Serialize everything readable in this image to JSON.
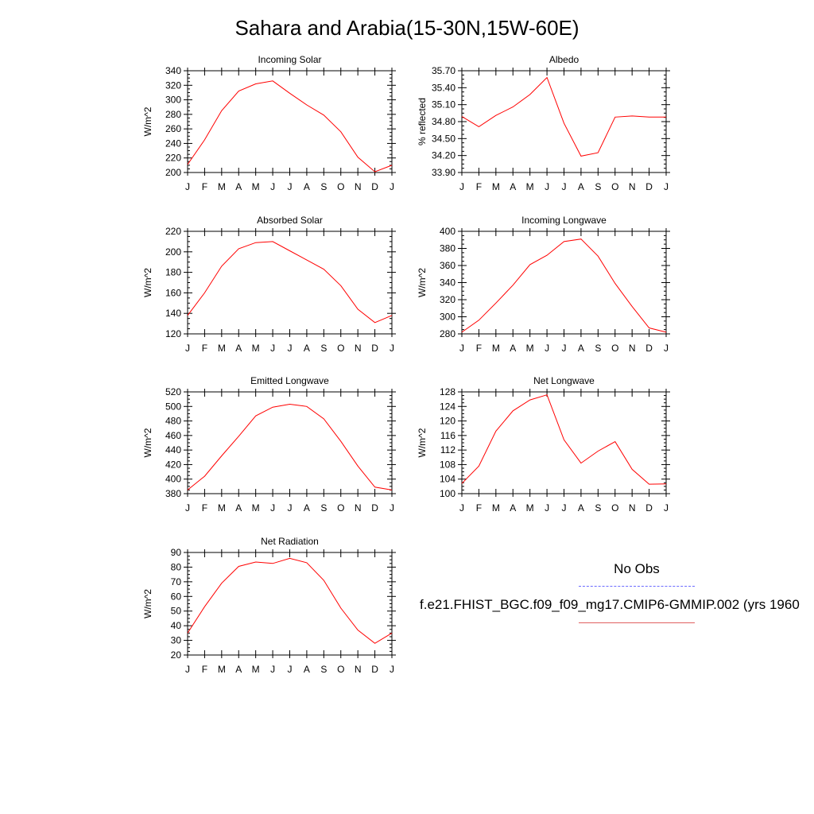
{
  "title": "Sahara and Arabia(15-30N,15W-60E)",
  "colors": {
    "model": "#ff0000",
    "obs": "#6a6aff",
    "axis": "#000000"
  },
  "legend": {
    "obs_label": "No Obs",
    "model_label": "f.e21.FHIST_BGC.f09_f09_mg17.CMIP6-GMMIP.002 (yrs 1960"
  },
  "chart_data": [
    {
      "type": "line",
      "title": "Incoming Solar",
      "ylabel": "W/m^2",
      "categories": [
        "J",
        "F",
        "M",
        "A",
        "M",
        "J",
        "J",
        "A",
        "S",
        "O",
        "N",
        "D",
        "J"
      ],
      "ylim": [
        200,
        340
      ],
      "yticks": [
        "200",
        "220",
        "240",
        "260",
        "280",
        "300",
        "320",
        "340"
      ],
      "values": [
        211,
        245,
        285,
        312,
        322,
        326,
        309,
        293,
        279,
        256,
        221,
        201,
        210
      ]
    },
    {
      "type": "line",
      "title": "Albedo",
      "ylabel": "% reflected",
      "categories": [
        "J",
        "F",
        "M",
        "A",
        "M",
        "J",
        "J",
        "A",
        "S",
        "O",
        "N",
        "D",
        "J"
      ],
      "ylim": [
        33.9,
        35.7
      ],
      "yticks": [
        "33.90",
        "34.20",
        "34.50",
        "34.80",
        "35.10",
        "35.40",
        "35.70"
      ],
      "values": [
        34.89,
        34.71,
        34.91,
        35.06,
        35.28,
        35.58,
        34.77,
        34.19,
        34.25,
        34.88,
        34.9,
        34.88,
        34.88
      ]
    },
    {
      "type": "line",
      "title": "Absorbed Solar",
      "ylabel": "W/m^2",
      "categories": [
        "J",
        "F",
        "M",
        "A",
        "M",
        "J",
        "J",
        "A",
        "S",
        "O",
        "N",
        "D",
        "J"
      ],
      "ylim": [
        120,
        220
      ],
      "yticks": [
        "120",
        "140",
        "160",
        "180",
        "200",
        "220"
      ],
      "values": [
        138,
        160,
        186,
        203,
        209,
        210,
        201,
        192,
        183,
        167,
        144,
        131,
        138
      ]
    },
    {
      "type": "line",
      "title": "Incoming Longwave",
      "ylabel": "W/m^2",
      "categories": [
        "J",
        "F",
        "M",
        "A",
        "M",
        "J",
        "J",
        "A",
        "S",
        "O",
        "N",
        "D",
        "J"
      ],
      "ylim": [
        280,
        400
      ],
      "yticks": [
        "280",
        "300",
        "320",
        "340",
        "360",
        "380",
        "400"
      ],
      "values": [
        282,
        296,
        316,
        337,
        361,
        372,
        388,
        391,
        371,
        339,
        312,
        287,
        282
      ]
    },
    {
      "type": "line",
      "title": "Emitted Longwave",
      "ylabel": "W/m^2",
      "categories": [
        "J",
        "F",
        "M",
        "A",
        "M",
        "J",
        "J",
        "A",
        "S",
        "O",
        "N",
        "D",
        "J"
      ],
      "ylim": [
        380,
        520
      ],
      "yticks": [
        "380",
        "400",
        "420",
        "440",
        "460",
        "480",
        "500",
        "520"
      ],
      "values": [
        385,
        404,
        432,
        459,
        487,
        499,
        503,
        500,
        483,
        452,
        418,
        389,
        385
      ]
    },
    {
      "type": "line",
      "title": "Net Longwave",
      "ylabel": "W/m^2",
      "categories": [
        "J",
        "F",
        "M",
        "A",
        "M",
        "J",
        "J",
        "A",
        "S",
        "O",
        "N",
        "D",
        "J"
      ],
      "ylim": [
        100,
        128
      ],
      "yticks": [
        "100",
        "104",
        "108",
        "112",
        "116",
        "120",
        "124",
        "128"
      ],
      "values": [
        102.8,
        107.6,
        117.2,
        122.8,
        125.8,
        127.2,
        114.8,
        108.4,
        111.7,
        114.3,
        106.7,
        102.6,
        102.7
      ]
    },
    {
      "type": "line",
      "title": "Net Radiation",
      "ylabel": "W/m^2",
      "categories": [
        "J",
        "F",
        "M",
        "A",
        "M",
        "J",
        "J",
        "A",
        "S",
        "O",
        "N",
        "D",
        "J"
      ],
      "ylim": [
        20,
        90
      ],
      "yticks": [
        "20",
        "30",
        "40",
        "50",
        "60",
        "70",
        "80",
        "90"
      ],
      "values": [
        35,
        53,
        69,
        80.5,
        83.5,
        82.5,
        86,
        83,
        71,
        52,
        37,
        28,
        35
      ]
    }
  ]
}
